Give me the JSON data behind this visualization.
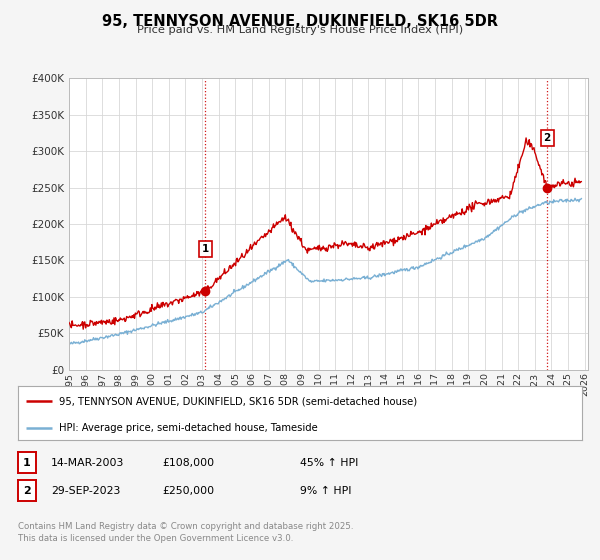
{
  "title": "95, TENNYSON AVENUE, DUKINFIELD, SK16 5DR",
  "subtitle": "Price paid vs. HM Land Registry's House Price Index (HPI)",
  "property_label": "95, TENNYSON AVENUE, DUKINFIELD, SK16 5DR (semi-detached house)",
  "hpi_label": "HPI: Average price, semi-detached house, Tameside",
  "transaction1_date": "14-MAR-2003",
  "transaction1_price": "£108,000",
  "transaction1_hpi": "45% ↑ HPI",
  "transaction2_date": "29-SEP-2023",
  "transaction2_price": "£250,000",
  "transaction2_hpi": "9% ↑ HPI",
  "footer": "Contains HM Land Registry data © Crown copyright and database right 2025.\nThis data is licensed under the Open Government Licence v3.0.",
  "property_color": "#cc0000",
  "hpi_color": "#7ab0d4",
  "ylim": [
    0,
    400000
  ],
  "xlim_start": 1995.0,
  "xlim_end": 2026.2,
  "background_color": "#f5f5f5",
  "plot_bg_color": "#ffffff",
  "grid_color": "#d8d8d8",
  "transaction1_x": 2003.2,
  "transaction2_x": 2023.75,
  "footnote_color": "#888888",
  "box_edge_color": "#cc0000"
}
